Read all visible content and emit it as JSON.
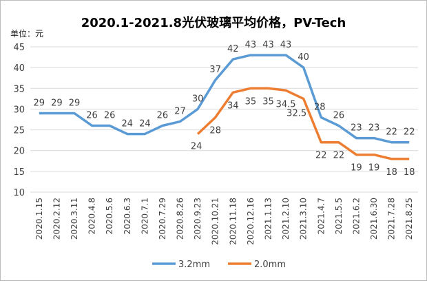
{
  "chart_data": {
    "type": "line",
    "title": "2020.1-2021.8光伏玻璃平均价格，PV-Tech",
    "unit_label": "单位：元",
    "ylim": [
      10,
      45
    ],
    "yticks": [
      "10",
      "15",
      "20",
      "25",
      "30",
      "35",
      "40",
      "45"
    ],
    "grid": true,
    "legend_position": "bottom",
    "categories": [
      "2020.1.15",
      "2020.2.12",
      "2020.3.11",
      "2020.4.8",
      "2020.5.6",
      "2020.6.3",
      "2020.7.1",
      "2020.7.29",
      "2020.8.26",
      "2020.9.23",
      "2020.10.21",
      "2020.11.18",
      "2020.12.16",
      "2021.1.13",
      "2021.2.10",
      "2021.3.10",
      "2021.4.7",
      "2021.5.5",
      "2021.6.2",
      "2021.6.30",
      "2021.7.28",
      "2021.8.25"
    ],
    "series": [
      {
        "name": "3.2mm",
        "color": "#5b9bd5",
        "values": [
          29,
          29,
          29,
          26,
          26,
          24,
          24,
          26,
          27,
          30,
          37,
          42,
          43,
          43,
          43,
          40,
          28,
          26,
          23,
          23,
          22,
          22
        ],
        "labels": [
          "29",
          "29",
          "29",
          "26",
          "26",
          "24",
          "24",
          "26",
          "27",
          "30",
          "37",
          "42",
          "43",
          "43",
          "43",
          "40",
          "28",
          "26",
          "23",
          "23",
          "22",
          "22"
        ]
      },
      {
        "name": "2.0mm",
        "color": "#ed7d31",
        "values": [
          null,
          null,
          null,
          null,
          null,
          null,
          null,
          null,
          null,
          24,
          28,
          34,
          35,
          35,
          34.5,
          32.5,
          22,
          22,
          19,
          19,
          18,
          18
        ],
        "labels": [
          null,
          null,
          null,
          null,
          null,
          null,
          null,
          null,
          null,
          "24",
          "28",
          "34",
          "35",
          "35",
          "34.5",
          "32.5",
          "22",
          "22",
          "19",
          "19",
          "18",
          "18"
        ]
      }
    ]
  }
}
